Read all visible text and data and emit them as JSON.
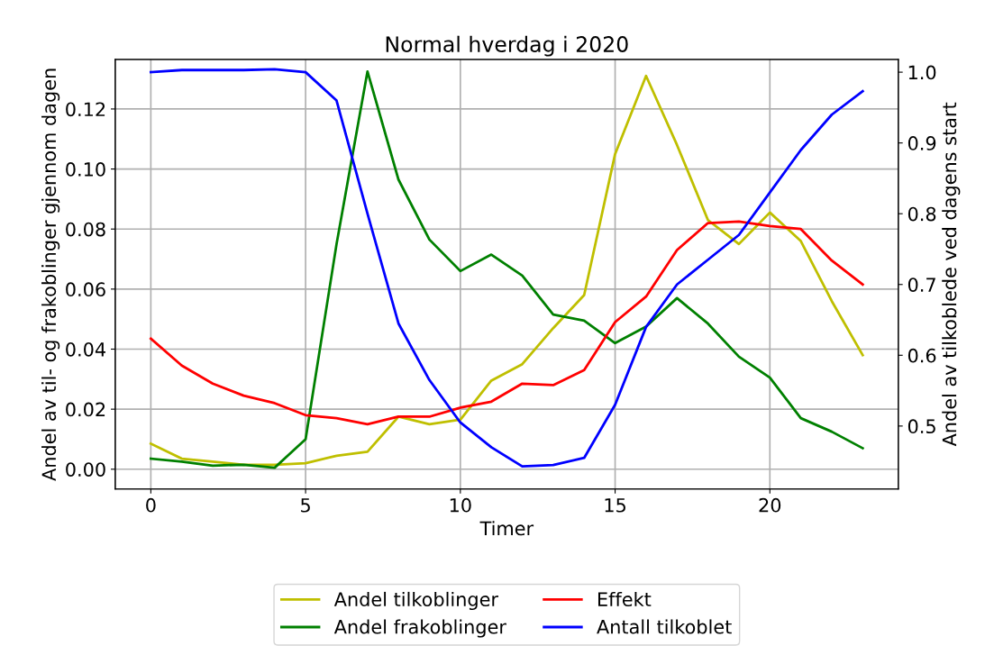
{
  "chart_data": {
    "type": "line",
    "title": "Normal hverdag i 2020",
    "xlabel": "Timer",
    "ylabel": "Andel av til- og frakoblinger gjennom dagen",
    "y2label": "Andel av tilkoblede ved dagens start",
    "x": [
      0,
      1,
      2,
      3,
      4,
      5,
      6,
      7,
      8,
      9,
      10,
      11,
      12,
      13,
      14,
      15,
      16,
      17,
      18,
      19,
      20,
      21,
      22,
      23
    ],
    "xlim": [
      -1.15,
      24.15
    ],
    "xticks": [
      0,
      5,
      10,
      15,
      20
    ],
    "ylim": [
      -0.0066,
      0.1365
    ],
    "yticks": [
      {
        "value": 0,
        "label": "0.00"
      },
      {
        "value": 0.02,
        "label": "0.02"
      },
      {
        "value": 0.04,
        "label": "0.04"
      },
      {
        "value": 0.06,
        "label": "0.06"
      },
      {
        "value": 0.08,
        "label": "0.08"
      },
      {
        "value": 0.1,
        "label": "0.10"
      },
      {
        "value": 0.12,
        "label": "0.12"
      }
    ],
    "y2lim": [
      0.411,
      1.018
    ],
    "y2ticks": [
      {
        "value": 0.5,
        "label": "0.5"
      },
      {
        "value": 0.6,
        "label": "0.6"
      },
      {
        "value": 0.7,
        "label": "0.7"
      },
      {
        "value": 0.8,
        "label": "0.8"
      },
      {
        "value": 0.9,
        "label": "0.9"
      },
      {
        "value": 1.0,
        "label": "1.0"
      }
    ],
    "grid": true,
    "legend": "bottom",
    "series": [
      {
        "name": "Andel tilkoblinger",
        "color": "#bfbf00",
        "values": [
          0.0085,
          0.0035,
          0.0025,
          0.0015,
          0.0015,
          0.002,
          0.0045,
          0.0058,
          0.0175,
          0.015,
          0.0165,
          0.0295,
          0.035,
          0.047,
          0.058,
          0.105,
          0.131,
          0.108,
          0.083,
          0.075,
          0.0855,
          0.076,
          0.056,
          0.038
        ]
      },
      {
        "name": "Andel frakoblinger",
        "color": "#008000",
        "values": [
          0.0035,
          0.0025,
          0.0012,
          0.0015,
          0.0005,
          0.01,
          0.075,
          0.1325,
          0.0965,
          0.0765,
          0.066,
          0.0715,
          0.0645,
          0.0515,
          0.0495,
          0.042,
          0.0475,
          0.057,
          0.0485,
          0.0375,
          0.0305,
          0.017,
          0.0125,
          0.007
        ]
      },
      {
        "name": "Effekt",
        "color": "#ff0000",
        "values": [
          0.0435,
          0.0345,
          0.0285,
          0.0245,
          0.022,
          0.018,
          0.017,
          0.015,
          0.0175,
          0.0175,
          0.0205,
          0.0225,
          0.0285,
          0.028,
          0.033,
          0.049,
          0.0575,
          0.073,
          0.082,
          0.0825,
          0.081,
          0.08,
          0.0695,
          0.0615
        ]
      },
      {
        "name": "Antall tilkoblet",
        "color": "#0000ff",
        "axis": "y2",
        "values": [
          1.0,
          1.003,
          1.003,
          1.003,
          1.004,
          1.0,
          0.96,
          0.8,
          0.645,
          0.565,
          0.505,
          0.47,
          0.443,
          0.445,
          0.455,
          0.53,
          0.64,
          0.7,
          0.735,
          0.77,
          0.83,
          0.89,
          0.94,
          0.973
        ]
      }
    ]
  }
}
